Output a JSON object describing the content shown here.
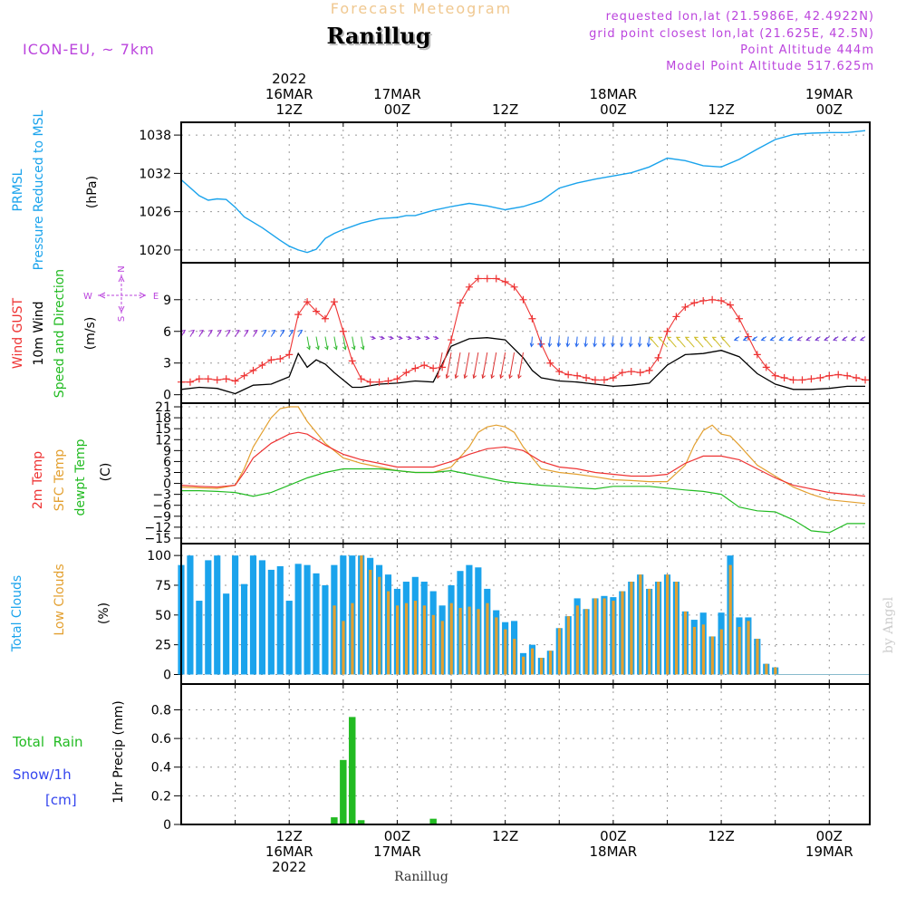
{
  "header": {
    "top_title": "Forecast Meteogram",
    "station": "Ranillug",
    "model": "ICON-EU, ~ 7km",
    "info_lines": [
      "requested lon,lat (21.5986E, 42.4922N)",
      "grid point closest lon,lat (21.625E, 42.5N)",
      "Point Altitude 444m",
      "Model Point Altitude 517.625m"
    ],
    "footer_station": "Ranillug",
    "watermark": "by Angel"
  },
  "time_axis": {
    "top_labels": [
      {
        "t": 12,
        "lines": [
          "2022",
          "16MAR",
          "12Z"
        ]
      },
      {
        "t": 24,
        "lines": [
          "17MAR",
          "00Z"
        ]
      },
      {
        "t": 36,
        "lines": [
          "12Z"
        ]
      },
      {
        "t": 48,
        "lines": [
          "18MAR",
          "00Z"
        ]
      },
      {
        "t": 60,
        "lines": [
          "12Z"
        ]
      },
      {
        "t": 72,
        "lines": [
          "19MAR",
          "00Z"
        ]
      }
    ],
    "bottom_labels": [
      {
        "t": 12,
        "lines": [
          "12Z",
          "16MAR",
          "2022"
        ]
      },
      {
        "t": 24,
        "lines": [
          "00Z",
          "17MAR"
        ]
      },
      {
        "t": 36,
        "lines": [
          "12Z"
        ]
      },
      {
        "t": 48,
        "lines": [
          "00Z",
          "18MAR"
        ]
      },
      {
        "t": 60,
        "lines": [
          "12Z"
        ]
      },
      {
        "t": 72,
        "lines": [
          "00Z",
          "19MAR"
        ]
      }
    ]
  },
  "panels": {
    "pressure": {
      "labels": [
        {
          "text": "PRMSL",
          "color": "#1aa3ec"
        },
        {
          "text": "Pressure Reduced to MSL",
          "color": "#1aa3ec"
        },
        {
          "text": "(hPa)",
          "color": "#000000"
        }
      ]
    },
    "wind": {
      "labels": [
        {
          "text": "Wind GUST",
          "color": "#ee3333"
        },
        {
          "text": "10m Wind",
          "color": "#000000"
        },
        {
          "text": "Speed and Direction",
          "color": "#22bb22"
        },
        {
          "text": "(m/s)",
          "color": "#000000"
        }
      ],
      "compass": {
        "n": "N",
        "s": "S",
        "w": "W",
        "e": "E",
        "color": "#bb44dd"
      }
    },
    "temp": {
      "labels": [
        {
          "text": "2m Temp",
          "color": "#ee3333"
        },
        {
          "text": "SFC Temp",
          "color": "#e3a030"
        },
        {
          "text": "dewpt Temp",
          "color": "#22bb22"
        },
        {
          "text": "(C)",
          "color": "#000000"
        }
      ]
    },
    "clouds": {
      "labels": [
        {
          "text": "Total Clouds",
          "color": "#1aa3ec"
        },
        {
          "text": "Low Clouds",
          "color": "#e3a030"
        },
        {
          "text": "(%)",
          "color": "#000000"
        }
      ]
    },
    "precip": {
      "labels": [
        {
          "text": "1hr Precip (mm)",
          "color": "#000000"
        }
      ],
      "legend": [
        {
          "text": "Total  Rain",
          "color": "#22bb22"
        },
        {
          "text": "Snow/1h",
          "color": "#3344ee"
        },
        {
          "text": "[cm]",
          "color": "#3344ee"
        }
      ]
    }
  },
  "colors": {
    "pressure": "#1aa3ec",
    "gust": "#ee3333",
    "wind": "#000000",
    "temp2m": "#ee3333",
    "sfc": "#e3a030",
    "dewpt": "#22bb22",
    "total_cloud": "#1aa3ec",
    "low_cloud": "#e3a030",
    "rain": "#22bb22",
    "grid": "#999999",
    "title_orange": "#f0c890",
    "purple": "#bb44dd"
  },
  "chart_data": [
    {
      "type": "line",
      "name": "PRMSL",
      "xlabel": "",
      "ylabel": "(hPa)",
      "time_range_hours": [
        0,
        76.5
      ],
      "ylim": [
        1018,
        1040
      ],
      "yticks": [
        1020,
        1026,
        1032,
        1038
      ],
      "grid": true,
      "x": [
        0,
        2,
        3,
        4,
        5,
        6,
        7,
        9,
        11,
        12,
        13,
        14,
        15,
        16,
        17,
        18,
        20,
        22,
        23,
        24,
        25,
        26,
        28,
        30,
        32,
        34,
        36,
        38,
        40,
        42,
        44,
        46,
        48,
        50,
        52,
        54,
        56,
        58,
        60,
        62,
        64,
        66,
        68,
        70,
        72,
        74,
        76
      ],
      "series": [
        {
          "values": [
            1031,
            1028.5,
            1027.8,
            1028,
            1027.9,
            1026.7,
            1025.2,
            1023.5,
            1021.5,
            1020.6,
            1020,
            1019.6,
            1020.1,
            1021.8,
            1022.6,
            1023.2,
            1024.2,
            1024.9,
            1025,
            1025.1,
            1025.4,
            1025.4,
            1026.2,
            1026.8,
            1027.3,
            1026.9,
            1026.3,
            1026.8,
            1027.7,
            1029.7,
            1030.5,
            1031.1,
            1031.6,
            1032.1,
            1033,
            1034.4,
            1034,
            1033.2,
            1033,
            1034.2,
            1035.8,
            1037.3,
            1038.1,
            1038.3,
            1038.4,
            1038.4,
            1038.7
          ]
        }
      ]
    },
    {
      "type": "line",
      "name": "Wind",
      "ylabel": "(m/s)",
      "ylim": [
        -0.8,
        12.5
      ],
      "yticks": [
        0,
        3,
        6,
        9
      ],
      "grid": true,
      "series": [
        {
          "name": "Wind GUST",
          "x": [
            0,
            1,
            2,
            3,
            4,
            5,
            6,
            7,
            8,
            9,
            10,
            11,
            12,
            13,
            14,
            15,
            16,
            17,
            18,
            19,
            20,
            21,
            22,
            23,
            24,
            25,
            26,
            27,
            28,
            29,
            30,
            31,
            32,
            33,
            34,
            35,
            36,
            37,
            38,
            39,
            40,
            41,
            42,
            43,
            44,
            45,
            46,
            47,
            48,
            49,
            50,
            51,
            52,
            53,
            54,
            55,
            56,
            57,
            58,
            59,
            60,
            61,
            62,
            63,
            64,
            65,
            66,
            67,
            68,
            69,
            70,
            71,
            72,
            73,
            74,
            75,
            76
          ],
          "values": [
            1.2,
            1.2,
            1.5,
            1.5,
            1.4,
            1.5,
            1.3,
            1.8,
            2.3,
            2.8,
            3.3,
            3.4,
            3.8,
            7.6,
            8.8,
            7.9,
            7.2,
            8.8,
            6.0,
            3.2,
            1.5,
            1.2,
            1.2,
            1.3,
            1.5,
            2.1,
            2.5,
            2.8,
            2.5,
            2.6,
            5.2,
            8.7,
            10.2,
            11.0,
            11.0,
            11.0,
            10.7,
            10.2,
            9.0,
            7.2,
            4.8,
            3.0,
            2.2,
            1.9,
            1.8,
            1.6,
            1.4,
            1.4,
            1.6,
            2.1,
            2.2,
            2.1,
            2.3,
            3.5,
            6.0,
            7.4,
            8.3,
            8.7,
            8.9,
            9.0,
            8.9,
            8.5,
            7.2,
            5.5,
            3.8,
            2.6,
            1.8,
            1.6,
            1.4,
            1.4,
            1.5,
            1.6,
            1.8,
            1.9,
            1.8,
            1.6,
            1.4
          ]
        },
        {
          "name": "10m Wind",
          "x": [
            0,
            2,
            4,
            6,
            8,
            10,
            12,
            13,
            14,
            15,
            16,
            17,
            19,
            20,
            22,
            24,
            26,
            28,
            30,
            32,
            34,
            36,
            38,
            39,
            40,
            42,
            44,
            46,
            48,
            50,
            52,
            54,
            56,
            58,
            60,
            62,
            64,
            66,
            68,
            70,
            72,
            74,
            76
          ],
          "values": [
            0.5,
            0.7,
            0.6,
            0.1,
            0.9,
            1.0,
            1.7,
            3.9,
            2.6,
            3.3,
            2.9,
            2.1,
            0.7,
            0.7,
            1.0,
            1.1,
            1.3,
            1.2,
            4.6,
            5.3,
            5.4,
            5.2,
            3.5,
            2.3,
            1.6,
            1.3,
            1.2,
            1.0,
            0.8,
            0.9,
            1.1,
            2.8,
            3.8,
            3.9,
            4.2,
            3.6,
            2.0,
            1.0,
            0.5,
            0.5,
            0.6,
            0.8,
            0.8
          ]
        },
        {
          "name": "Speed and Direction",
          "type": "arrows",
          "note": "direction arrows drawn at hourly steps"
        }
      ]
    },
    {
      "type": "line",
      "name": "Temperature",
      "ylabel": "(C)",
      "ylim": [
        -16.5,
        22
      ],
      "yticks": [
        -15,
        -12,
        -9,
        -6,
        -3,
        0,
        3,
        6,
        9,
        12,
        15,
        18,
        21
      ],
      "grid": true,
      "series": [
        {
          "name": "2m Temp",
          "x": [
            0,
            2,
            4,
            6,
            7,
            8,
            10,
            12,
            13,
            14,
            16,
            18,
            20,
            22,
            24,
            26,
            28,
            30,
            32,
            34,
            36,
            38,
            40,
            42,
            44,
            46,
            48,
            50,
            52,
            54,
            56,
            58,
            60,
            62,
            64,
            66,
            68,
            70,
            72,
            74,
            76
          ],
          "values": [
            -0.5,
            -0.8,
            -1.0,
            -0.5,
            3.0,
            7.0,
            11.0,
            13.5,
            14.0,
            13.5,
            10.5,
            8.0,
            6.5,
            5.5,
            4.5,
            4.5,
            4.5,
            6.0,
            8.0,
            9.5,
            10.0,
            9.0,
            6.0,
            4.5,
            4.0,
            3.0,
            2.5,
            2.0,
            2.0,
            2.5,
            5.5,
            7.5,
            7.5,
            6.5,
            4.0,
            1.5,
            -0.5,
            -1.5,
            -2.5,
            -3.0,
            -3.5
          ]
        },
        {
          "name": "SFC Temp",
          "x": [
            0,
            2,
            4,
            6,
            7,
            8,
            10,
            11,
            12,
            13,
            14,
            16,
            18,
            20,
            22,
            24,
            26,
            28,
            30,
            32,
            33,
            34,
            35,
            36,
            37,
            38,
            39,
            40,
            42,
            44,
            46,
            48,
            50,
            52,
            54,
            56,
            57,
            58,
            59,
            60,
            61,
            62,
            64,
            66,
            68,
            70,
            72,
            74,
            76
          ],
          "values": [
            -1.0,
            -1.2,
            -1.4,
            -0.5,
            4.0,
            10.0,
            18.0,
            20.5,
            21.0,
            21.0,
            17.0,
            11.0,
            7.0,
            5.5,
            4.5,
            3.5,
            3.0,
            3.0,
            4.5,
            10.0,
            14.0,
            15.5,
            16.0,
            15.5,
            14.0,
            10.0,
            7.0,
            4.0,
            3.0,
            2.5,
            1.8,
            1.0,
            0.8,
            0.5,
            0.5,
            5.0,
            10.5,
            14.5,
            16.0,
            13.5,
            13.0,
            10.5,
            5.0,
            2.0,
            -1.0,
            -3.0,
            -4.5,
            -5.0,
            -5.5
          ]
        },
        {
          "name": "dewpt Temp",
          "x": [
            0,
            2,
            4,
            6,
            8,
            10,
            12,
            14,
            16,
            18,
            20,
            22,
            24,
            26,
            28,
            30,
            32,
            34,
            36,
            38,
            40,
            42,
            44,
            46,
            48,
            50,
            52,
            54,
            56,
            58,
            60,
            62,
            64,
            66,
            68,
            70,
            72,
            74,
            76
          ],
          "values": [
            -2.0,
            -2.0,
            -2.2,
            -2.5,
            -3.5,
            -2.5,
            -0.5,
            1.5,
            3.0,
            4.0,
            4.0,
            4.0,
            3.5,
            3.0,
            3.0,
            3.5,
            2.5,
            1.5,
            0.5,
            0.0,
            -0.5,
            -0.8,
            -1.2,
            -1.5,
            -0.8,
            -0.8,
            -0.8,
            -1.3,
            -1.8,
            -2.2,
            -3.0,
            -6.5,
            -7.5,
            -7.8,
            -10.0,
            -13.0,
            -13.5,
            -11.0,
            -11.0
          ]
        }
      ]
    },
    {
      "type": "bar",
      "name": "Clouds",
      "ylabel": "(%)",
      "ylim": [
        -8,
        110
      ],
      "yticks": [
        0,
        25,
        50,
        75,
        100
      ],
      "grid": true,
      "series": [
        {
          "name": "Total Clouds",
          "values": [
            92,
            100,
            62,
            96,
            100,
            68,
            100,
            76,
            100,
            96,
            88,
            91,
            62,
            93,
            92,
            85,
            75,
            92,
            100,
            100,
            100,
            98,
            92,
            84,
            72,
            78,
            82,
            78,
            70,
            58,
            75,
            87,
            92,
            90,
            72,
            54,
            44,
            45,
            18,
            25,
            14,
            20,
            39,
            49,
            64,
            55,
            64,
            66,
            65,
            70,
            78,
            84,
            72,
            78,
            84,
            78,
            53,
            46,
            52,
            32,
            52,
            100,
            48,
            48,
            30,
            9,
            6,
            0,
            0,
            0,
            0,
            0,
            0,
            0,
            0,
            0
          ]
        },
        {
          "name": "Low Clouds",
          "values": [
            0,
            0,
            0,
            0,
            0,
            0,
            0,
            0,
            0,
            0,
            0,
            0,
            0,
            0,
            0,
            0,
            0,
            58,
            45,
            60,
            100,
            88,
            82,
            70,
            58,
            60,
            62,
            58,
            50,
            45,
            60,
            56,
            57,
            55,
            60,
            48,
            38,
            30,
            15,
            22,
            14,
            20,
            39,
            49,
            58,
            55,
            64,
            64,
            62,
            70,
            78,
            84,
            72,
            78,
            84,
            78,
            53,
            40,
            42,
            32,
            38,
            92,
            40,
            45,
            30,
            9,
            6,
            0,
            0,
            0,
            0,
            0,
            0,
            0,
            0,
            0
          ]
        }
      ]
    },
    {
      "type": "bar",
      "name": "Precip",
      "ylabel": "1hr Precip (mm)",
      "ylim": [
        0,
        0.98
      ],
      "yticks": [
        0,
        0.2,
        0.4,
        0.6,
        0.8
      ],
      "grid": true,
      "series": [
        {
          "name": "Total Rain",
          "x": [
            17,
            18,
            19,
            20,
            28
          ],
          "values": [
            0.05,
            0.45,
            0.75,
            0.03,
            0.04
          ]
        }
      ]
    }
  ]
}
